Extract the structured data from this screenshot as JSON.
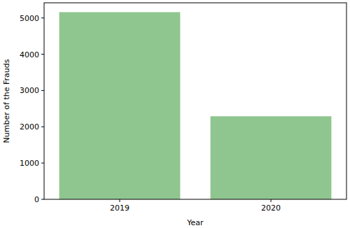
{
  "chart_data": {
    "type": "bar",
    "x_label": "Year",
    "y_label": "Number of the Frauds",
    "categories": [
      "2019",
      "2020"
    ],
    "values": [
      5160,
      2290
    ],
    "color": "#8fc68f",
    "ylim": [
      0,
      5418
    ],
    "yticks": [
      0,
      1000,
      2000,
      3000,
      4000,
      5000
    ],
    "grid": false
  }
}
